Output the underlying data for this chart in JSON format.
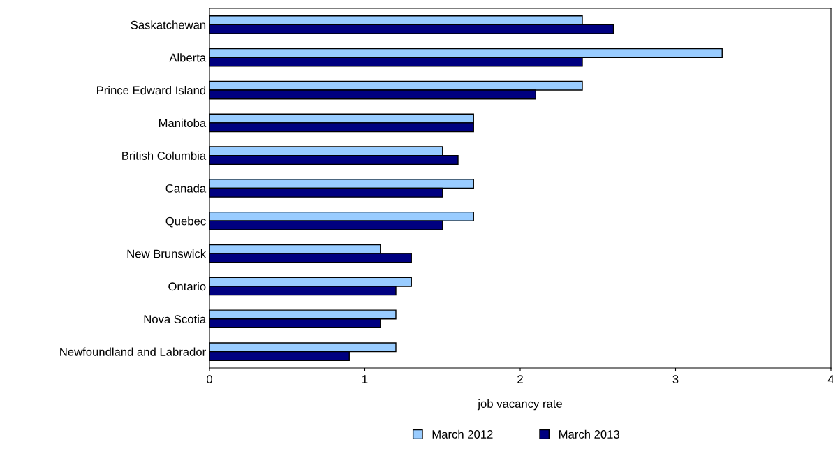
{
  "chart_data": {
    "type": "bar",
    "orientation": "horizontal",
    "xlabel": "job vacancy rate",
    "categories": [
      "Saskatchewan",
      "Alberta",
      "Prince Edward Island",
      "Manitoba",
      "British Columbia",
      "Canada",
      "Quebec",
      "New Brunswick",
      "Ontario",
      "Nova Scotia",
      "Newfoundland and Labrador"
    ],
    "series": [
      {
        "name": "March 2012",
        "color": "#99ccff",
        "values": [
          2.4,
          3.3,
          2.4,
          1.7,
          1.5,
          1.7,
          1.7,
          1.1,
          1.3,
          1.2,
          1.2
        ]
      },
      {
        "name": "March 2013",
        "color": "#000080",
        "values": [
          2.6,
          2.4,
          2.1,
          1.7,
          1.6,
          1.5,
          1.5,
          1.3,
          1.2,
          1.1,
          0.9
        ]
      }
    ],
    "xlim": [
      0,
      4
    ],
    "xticks": [
      0,
      1,
      2,
      3,
      4
    ],
    "grid": false,
    "legend": "bottom"
  }
}
